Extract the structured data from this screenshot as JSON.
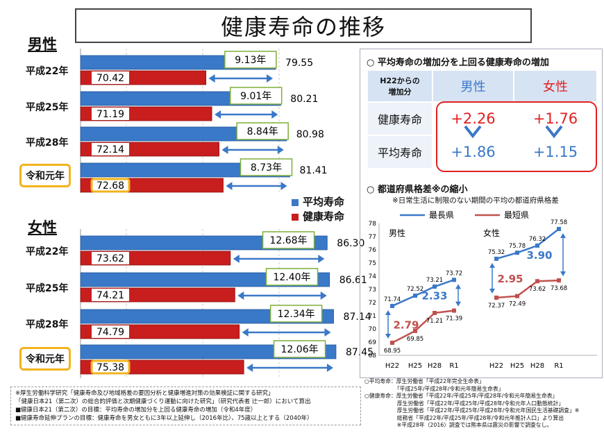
{
  "title": "健康寿命の推移",
  "male_label": "男性",
  "female_label": "女性",
  "legend": {
    "avg": "平均寿命",
    "healthy": "健康寿命",
    "avg_color": "#3a78c8",
    "healthy_color": "#c81e1e"
  },
  "chart_data": [
    {
      "type": "bar",
      "title": "男性",
      "categories": [
        "平成22年",
        "平成25年",
        "平成28年",
        "令和元年"
      ],
      "series": [
        {
          "name": "平均寿命",
          "values": [
            79.55,
            80.21,
            80.98,
            81.41
          ]
        },
        {
          "name": "健康寿命",
          "values": [
            70.42,
            71.19,
            72.14,
            72.68
          ]
        }
      ],
      "gap_labels": [
        "9.13年",
        "9.01年",
        "8.84年",
        "8.73年"
      ],
      "avg_labels": [
        "79.55",
        "80.21",
        "80.98",
        "81.41"
      ],
      "healthy_labels": [
        "70.42",
        "71.19",
        "72.14",
        "72.68"
      ],
      "xlim": [
        54,
        88
      ]
    },
    {
      "type": "bar",
      "title": "女性",
      "categories": [
        "平成22年",
        "平成25年",
        "平成28年",
        "令和元年"
      ],
      "series": [
        {
          "name": "平均寿命",
          "values": [
            86.3,
            86.61,
            87.14,
            87.45
          ]
        },
        {
          "name": "健康寿命",
          "values": [
            73.62,
            74.21,
            74.79,
            75.38
          ]
        }
      ],
      "gap_labels": [
        "12.68年",
        "12.40年",
        "12.34年",
        "12.06年"
      ],
      "avg_labels": [
        "86.30",
        "86.61",
        "87.14",
        "87.45"
      ],
      "healthy_labels": [
        "73.62",
        "74.21",
        "74.79",
        "75.38"
      ],
      "xlim": [
        54,
        88
      ]
    },
    {
      "type": "line",
      "title": "男性",
      "x": [
        "H22",
        "H25",
        "H28",
        "R1"
      ],
      "series": [
        {
          "name": "最長県",
          "values": [
            71.74,
            72.52,
            73.21,
            73.72
          ]
        },
        {
          "name": "最短県",
          "values": [
            68.95,
            69.85,
            71.21,
            71.39
          ]
        }
      ],
      "gap_label": "2.79 → 2.33",
      "ylim": [
        68,
        78
      ]
    },
    {
      "type": "line",
      "title": "女性",
      "x": [
        "H22",
        "H25",
        "H28",
        "R1"
      ],
      "series": [
        {
          "name": "最長県",
          "values": [
            75.32,
            75.78,
            76.32,
            77.58
          ]
        },
        {
          "name": "最短県",
          "values": [
            72.37,
            72.49,
            73.62,
            73.68
          ]
        }
      ],
      "gap_label": "2.95 → 3.90",
      "ylim": [
        68,
        78
      ]
    }
  ],
  "right": {
    "section1_title": "○ 平均寿命の増加分を上回る健康寿命の増加",
    "table": {
      "corner_line1": "H22からの",
      "corner_line2": "増加分",
      "col_male": "男性",
      "col_female": "女性",
      "row1": "健康寿命",
      "row2": "平均寿命",
      "male_healthy": "+2.26",
      "female_healthy": "+1.76",
      "male_avg": "+1.86",
      "female_avg": "+1.15"
    },
    "section2_title": "○ 都道府県格差※の縮小",
    "section2_sub": "※日常生活に制限のない期間の平均の都道府県格差",
    "legend_long": "最長県",
    "legend_short": "最短県",
    "long_color": "#3a78c8",
    "short_color": "#c0504d",
    "male_label": "男性",
    "female_label": "女性",
    "male_gap_start": "2.79",
    "male_gap_end": "2.33",
    "female_gap_start": "2.95",
    "female_gap_end": "3.90",
    "yticks": [
      "78",
      "77",
      "76",
      "75",
      "74",
      "73",
      "72",
      "71",
      "70",
      "69",
      "68"
    ],
    "xticks_male": [
      "H22",
      "H25",
      "H28",
      "R1"
    ],
    "xticks_female": [
      "H22",
      "H25",
      "H28",
      "R1"
    ]
  },
  "notes_left": [
    "※厚生労働科学研究「健康寿命及び地域格差の要因分析と健康増進対策の効果検証に関する研究」",
    "「健康日本21（第二次）の総合的評価と次期健康づくり運動に向けた研究」（研究代表者 辻一郎）において算出",
    "■健康日本21（第二次）の目標：平均寿命の増加分を上回る健康寿命の増加（令和4年度）",
    "■健康寿命延伸プランの目標：健康寿命を男女ともに3年以上延伸し（2016年比）、75歳以上とする（2040年）"
  ],
  "notes_right": [
    "○平均寿命：厚生労働省「平成22年完全生命表」",
    "　　　　　　「平成25年/平成28年/令和元年簡易生命表」",
    "○健康寿命：厚生労働省「平成22年/平成25年/平成28年/令和元年簡易生命表」",
    "　　　　　　厚生労働省「平成22年/平成25年/平成28年/令和元年人口動態統計」",
    "　　　　　　厚生労働省「平成22年/平成25年/平成28年/令和元年国民生活基礎調査」※",
    "　　　　　　総務省「平成22年/平成25年/平成28年/令和元年推計人口」より算出",
    "　　　　　　※平成28年（2016）調査では熊本県は震災の影響で調査なし。"
  ]
}
